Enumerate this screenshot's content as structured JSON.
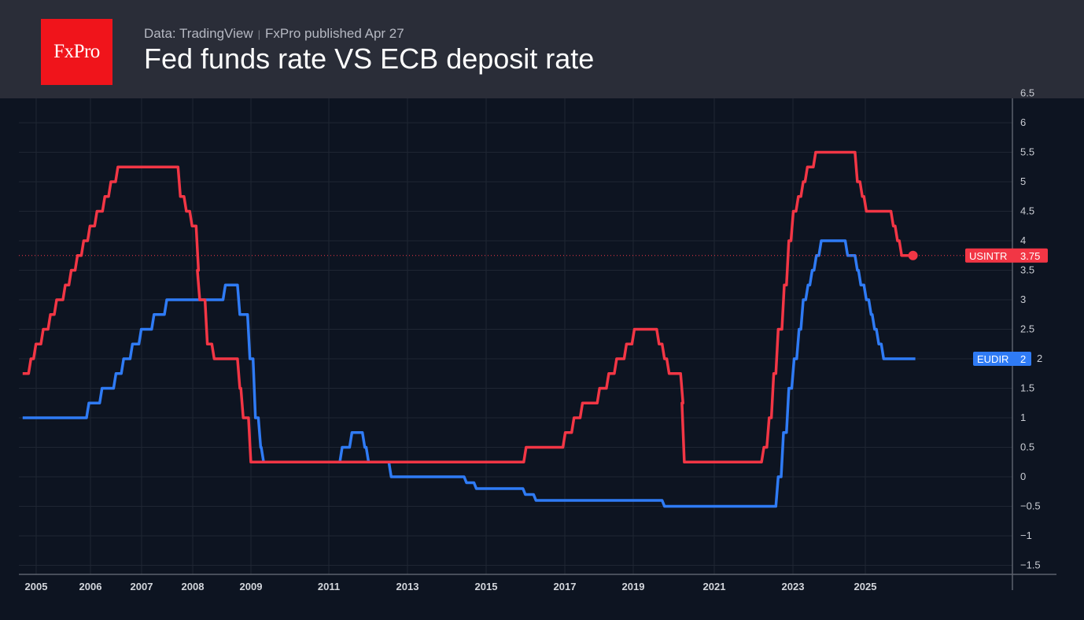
{
  "header": {
    "logo_text": "FxPro",
    "source": "Data: TradingView",
    "published": "FxPro published Apr 27",
    "title": "Fed funds rate VS ECB deposit rate"
  },
  "chart_data": {
    "type": "line",
    "title": "Fed funds rate VS ECB deposit rate",
    "xlabel": "",
    "ylabel": "",
    "x_ticks": [
      "2005",
      "2006",
      "2007",
      "2008",
      "2009",
      "2011",
      "2013",
      "2015",
      "2017",
      "2019",
      "2021",
      "2023",
      "2025"
    ],
    "y_ticks": [
      "6.5",
      "6",
      "5.5",
      "5",
      "4.5",
      "4",
      "3.5",
      "3",
      "2.5",
      "2",
      "1.5",
      "1",
      "0.5",
      "0",
      "−0.5",
      "−1",
      "−1.5"
    ],
    "ylim": [
      -1.6,
      6.6
    ],
    "grid": true,
    "step": true,
    "series": [
      {
        "name": "USINTR",
        "color": "#f23645",
        "last_value": "3.75",
        "points": [
          [
            "2004-10-01",
            1.75
          ],
          [
            "2004-11-10",
            2.0
          ],
          [
            "2004-12-14",
            2.25
          ],
          [
            "2005-02-02",
            2.5
          ],
          [
            "2005-03-22",
            2.75
          ],
          [
            "2005-05-03",
            3.0
          ],
          [
            "2005-06-30",
            3.25
          ],
          [
            "2005-08-09",
            3.5
          ],
          [
            "2005-09-20",
            3.75
          ],
          [
            "2005-11-01",
            4.0
          ],
          [
            "2005-12-13",
            4.25
          ],
          [
            "2006-01-31",
            4.5
          ],
          [
            "2006-03-28",
            4.75
          ],
          [
            "2006-05-10",
            5.0
          ],
          [
            "2006-06-29",
            5.25
          ],
          [
            "2007-09-18",
            4.75
          ],
          [
            "2007-10-31",
            4.5
          ],
          [
            "2007-12-11",
            4.25
          ],
          [
            "2008-01-22",
            3.5
          ],
          [
            "2008-01-30",
            3.0
          ],
          [
            "2008-03-18",
            2.25
          ],
          [
            "2008-04-30",
            2.0
          ],
          [
            "2008-10-08",
            1.5
          ],
          [
            "2008-10-29",
            1.0
          ],
          [
            "2008-12-16",
            0.25
          ],
          [
            "2015-12-16",
            0.5
          ],
          [
            "2016-12-14",
            0.75
          ],
          [
            "2017-03-15",
            1.0
          ],
          [
            "2017-06-14",
            1.25
          ],
          [
            "2017-12-13",
            1.5
          ],
          [
            "2018-03-21",
            1.75
          ],
          [
            "2018-06-13",
            2.0
          ],
          [
            "2018-09-26",
            2.25
          ],
          [
            "2018-12-19",
            2.5
          ],
          [
            "2019-07-31",
            2.25
          ],
          [
            "2019-09-18",
            2.0
          ],
          [
            "2019-10-30",
            1.75
          ],
          [
            "2020-03-03",
            1.25
          ],
          [
            "2020-03-15",
            0.25
          ],
          [
            "2022-03-16",
            0.5
          ],
          [
            "2022-05-04",
            1.0
          ],
          [
            "2022-06-15",
            1.75
          ],
          [
            "2022-07-27",
            2.5
          ],
          [
            "2022-09-21",
            3.25
          ],
          [
            "2022-11-02",
            4.0
          ],
          [
            "2022-12-14",
            4.5
          ],
          [
            "2023-02-01",
            4.75
          ],
          [
            "2023-03-22",
            5.0
          ],
          [
            "2023-05-03",
            5.25
          ],
          [
            "2023-07-26",
            5.5
          ],
          [
            "2024-09-18",
            5.0
          ],
          [
            "2024-11-07",
            4.75
          ],
          [
            "2024-12-18",
            4.5
          ],
          [
            "2025-09-17",
            4.25
          ],
          [
            "2025-10-29",
            4.0
          ],
          [
            "2025-12-10",
            3.75
          ],
          [
            "2026-04-27",
            3.75
          ]
        ]
      },
      {
        "name": "EUDIR",
        "color": "#2f7bf5",
        "last_value": "2",
        "points": [
          [
            "2004-10-01",
            1.0
          ],
          [
            "2005-12-06",
            1.25
          ],
          [
            "2006-03-08",
            1.5
          ],
          [
            "2006-06-15",
            1.75
          ],
          [
            "2006-08-09",
            2.0
          ],
          [
            "2006-10-11",
            2.25
          ],
          [
            "2006-12-13",
            2.5
          ],
          [
            "2007-03-14",
            2.75
          ],
          [
            "2007-06-13",
            3.0
          ],
          [
            "2008-07-09",
            3.25
          ],
          [
            "2008-10-08",
            2.75
          ],
          [
            "2008-11-12",
            2.75
          ],
          [
            "2008-12-10",
            2.0
          ],
          [
            "2009-01-21",
            1.0
          ],
          [
            "2009-03-11",
            0.5
          ],
          [
            "2009-04-08",
            0.25
          ],
          [
            "2011-04-13",
            0.5
          ],
          [
            "2011-07-13",
            0.75
          ],
          [
            "2011-11-09",
            0.5
          ],
          [
            "2011-12-14",
            0.25
          ],
          [
            "2012-07-11",
            0.0
          ],
          [
            "2014-06-11",
            -0.1
          ],
          [
            "2014-09-10",
            -0.2
          ],
          [
            "2015-12-09",
            -0.3
          ],
          [
            "2016-03-16",
            -0.4
          ],
          [
            "2019-09-18",
            -0.5
          ],
          [
            "2022-07-27",
            0.0
          ],
          [
            "2022-09-14",
            0.75
          ],
          [
            "2022-11-02",
            1.5
          ],
          [
            "2022-12-21",
            2.0
          ],
          [
            "2023-02-08",
            2.5
          ],
          [
            "2023-03-22",
            3.0
          ],
          [
            "2023-05-10",
            3.25
          ],
          [
            "2023-06-21",
            3.5
          ],
          [
            "2023-08-02",
            3.75
          ],
          [
            "2023-09-20",
            4.0
          ],
          [
            "2024-06-12",
            3.75
          ],
          [
            "2024-09-18",
            3.5
          ],
          [
            "2024-10-23",
            3.25
          ],
          [
            "2024-12-18",
            3.0
          ],
          [
            "2025-02-05",
            2.75
          ],
          [
            "2025-03-12",
            2.5
          ],
          [
            "2025-04-23",
            2.25
          ],
          [
            "2025-06-11",
            2.0
          ],
          [
            "2026-04-27",
            2.0
          ]
        ]
      }
    ]
  }
}
